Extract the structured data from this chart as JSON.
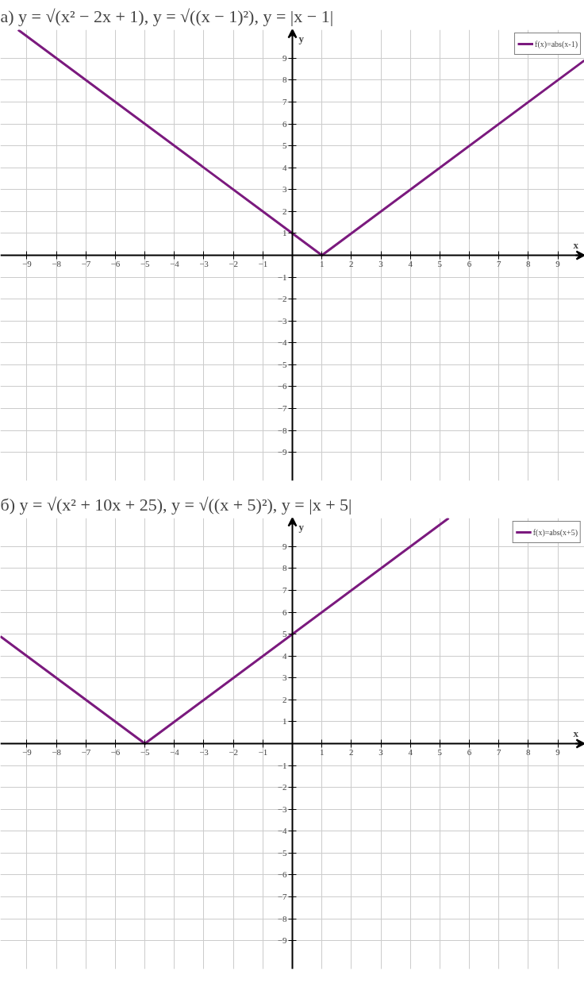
{
  "chart_data": [
    {
      "type": "line",
      "title": "а) y = √(x² − 2x + 1),      y = √((x − 1)²),      y = |x − 1|",
      "xlabel": "x",
      "ylabel": "y",
      "series": [
        {
          "name": "f(x)=abs(x-1)",
          "color": "#7b1a7e",
          "x": [
            -9.3,
            1,
            9.9
          ],
          "values": [
            10.3,
            0,
            8.9
          ]
        }
      ],
      "xlim": [
        -9.9,
        9.9
      ],
      "ylim": [
        -10.3,
        10.3
      ],
      "xticks": [
        -9,
        -8,
        -7,
        -6,
        -5,
        -4,
        -3,
        -2,
        -1,
        1,
        2,
        3,
        4,
        5,
        6,
        7,
        8,
        9
      ],
      "yticks": [
        -9,
        -8,
        -7,
        -6,
        -5,
        -4,
        -3,
        -2,
        -1,
        1,
        2,
        3,
        4,
        5,
        6,
        7,
        8,
        9
      ],
      "grid": true,
      "legend": "top right",
      "marker": "none",
      "line_style": "solid"
    },
    {
      "type": "line",
      "title": "б) y = √(x² + 10x + 25),      y = √((x + 5)²),      y = |x + 5|",
      "xlabel": "x",
      "ylabel": "y",
      "series": [
        {
          "name": "f(x)=abs(x+5)",
          "color": "#7b1a7e",
          "x": [
            -9.9,
            -5,
            5.3
          ],
          "values": [
            4.9,
            0,
            10.3
          ]
        }
      ],
      "xlim": [
        -9.9,
        9.9
      ],
      "ylim": [
        -10.3,
        10.3
      ],
      "xticks": [
        -9,
        -8,
        -7,
        -6,
        -5,
        -4,
        -3,
        -2,
        -1,
        1,
        2,
        3,
        4,
        5,
        6,
        7,
        8,
        9
      ],
      "yticks": [
        -9,
        -8,
        -7,
        -6,
        -5,
        -4,
        -3,
        -2,
        -1,
        1,
        2,
        3,
        4,
        5,
        6,
        7,
        8,
        9
      ],
      "grid": true,
      "legend": "top right",
      "marker": "none",
      "line_style": "solid"
    }
  ]
}
